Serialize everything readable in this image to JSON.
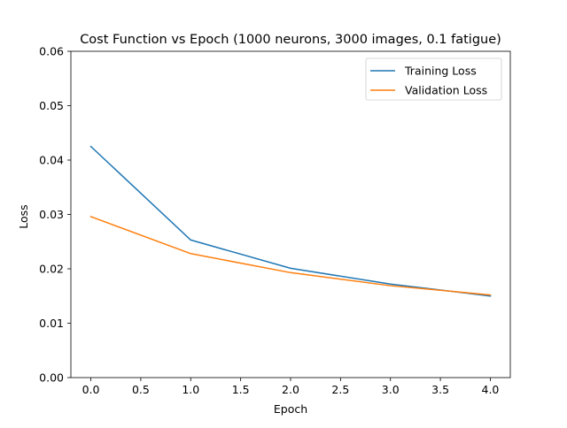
{
  "chart_data": {
    "type": "line",
    "title": "Cost Function vs Epoch (1000 neurons, 3000 images, 0.1 fatigue)",
    "xlabel": "Epoch",
    "ylabel": "Loss",
    "xlim": [
      -0.2,
      4.2
    ],
    "ylim": [
      0,
      0.06
    ],
    "xticks": [
      0.0,
      0.5,
      1.0,
      1.5,
      2.0,
      2.5,
      3.0,
      3.5,
      4.0
    ],
    "xtick_labels": [
      "0.0",
      "0.5",
      "1.0",
      "1.5",
      "2.0",
      "2.5",
      "3.0",
      "3.5",
      "4.0"
    ],
    "yticks": [
      0,
      0.01,
      0.02,
      0.03,
      0.04,
      0.05,
      0.06
    ],
    "ytick_labels": [
      "0.00",
      "0.01",
      "0.02",
      "0.03",
      "0.04",
      "0.05",
      "0.06"
    ],
    "grid": false,
    "legend_position": "top-right",
    "x": [
      0,
      1,
      2,
      3,
      4
    ],
    "series": [
      {
        "name": "Training Loss",
        "color": "#1f77b4",
        "values": [
          0.0425,
          0.0253,
          0.0201,
          0.0172,
          0.015
        ]
      },
      {
        "name": "Validation Loss",
        "color": "#ff7f0e",
        "values": [
          0.0296,
          0.0228,
          0.0193,
          0.0169,
          0.0152
        ]
      }
    ]
  }
}
